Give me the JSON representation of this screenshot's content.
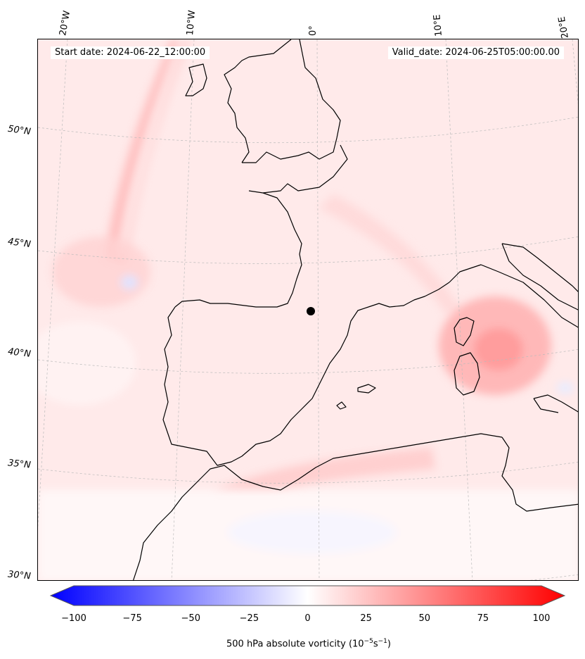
{
  "map": {
    "start_date_text": "Start date: 2024-06-22_12:00:00",
    "valid_date_text": "Valid_date: 2024-06-25T05:00:00.00",
    "longitude_labels": [
      "20°W",
      "10°W",
      "0°",
      "10°E",
      "20°E"
    ],
    "latitude_labels": [
      "50°N",
      "45°N",
      "40°N",
      "35°N",
      "30°N"
    ],
    "field": "500 hPa absolute vorticity",
    "colors": {
      "background_field": "#ffeaea",
      "high_vorticity": "#ff9a9a",
      "low_vorticity": "#eef0ff",
      "coastline": "#000000",
      "gridline": "#bbbbbb"
    }
  },
  "colorbar": {
    "min": -100,
    "max": 100,
    "tick_labels": [
      "−100",
      "−75",
      "−50",
      "−25",
      "0",
      "25",
      "50",
      "75",
      "100"
    ],
    "label_prefix": "500 hPa absolute vorticity (10",
    "label_exp1": "−5",
    "label_mid": "s",
    "label_exp2": "−1",
    "label_suffix": ")",
    "colors": {
      "negative_end": "#0000ff",
      "middle": "#ffffff",
      "positive_end": "#ff0000"
    }
  }
}
